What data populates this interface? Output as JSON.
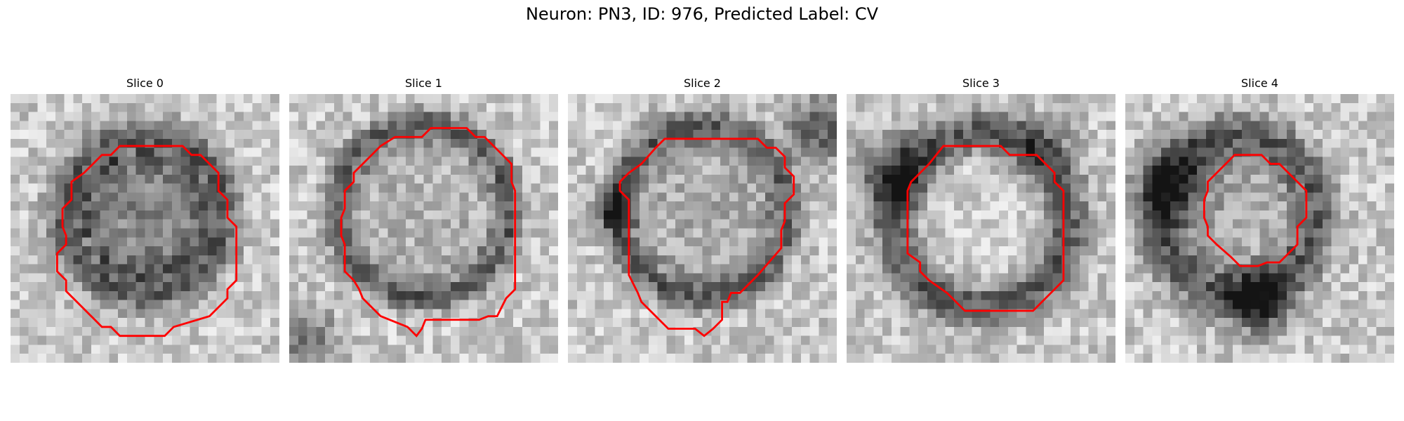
{
  "figure": {
    "title": "Neuron: PN3, ID: 976, Predicted Label: CV"
  },
  "panels": [
    {
      "title": "Slice 0"
    },
    {
      "title": "Slice 1"
    },
    {
      "title": "Slice 2"
    },
    {
      "title": "Slice 3"
    },
    {
      "title": "Slice 4"
    }
  ],
  "style": {
    "contour_color": "#ff0000",
    "image_colormap": "grayscale"
  }
}
